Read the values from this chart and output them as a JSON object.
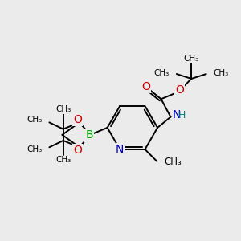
{
  "bg_color": "#ebebeb",
  "atom_colors": {
    "C": "#000000",
    "N": "#0000cc",
    "O": "#cc0000",
    "B": "#00aa00",
    "H": "#008080"
  },
  "bond_color": "#000000",
  "bond_width": 1.4,
  "figsize": [
    3.0,
    3.0
  ],
  "dpi": 100,
  "xlim": [
    0,
    10
  ],
  "ylim": [
    0,
    10
  ]
}
